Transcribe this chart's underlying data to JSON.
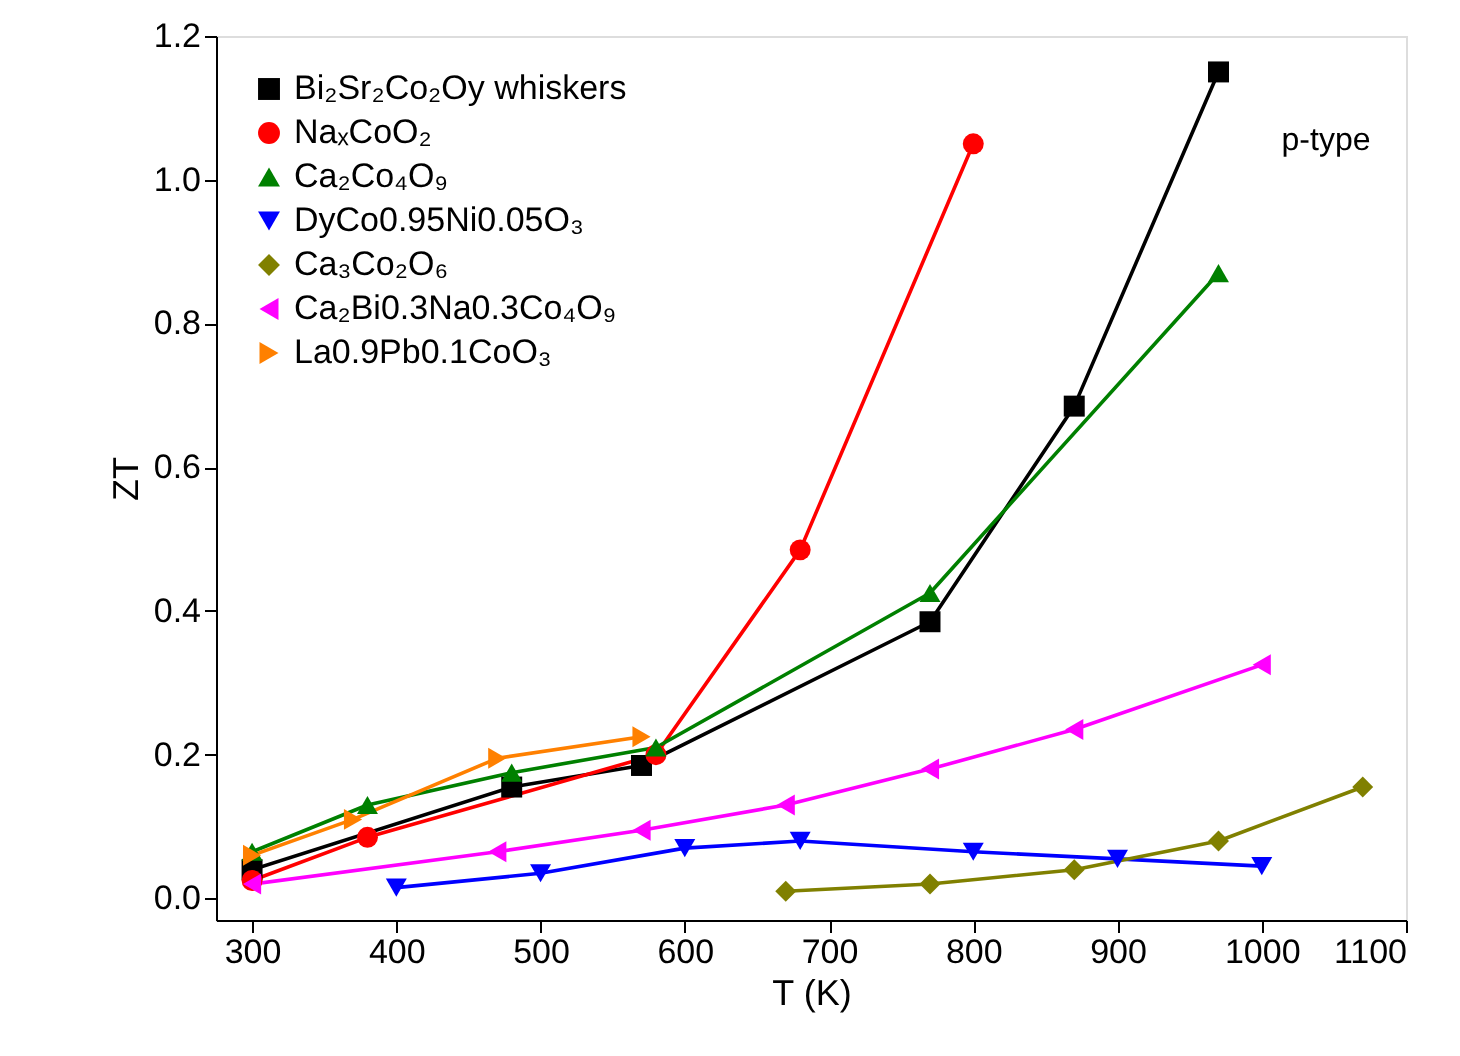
{
  "chart_data": {
    "type": "line",
    "xlabel": "T (K)",
    "ylabel": "ZT",
    "xlim": [
      275,
      1100
    ],
    "ylim": [
      -0.03,
      1.2
    ],
    "xticks": [
      300,
      400,
      500,
      600,
      700,
      800,
      900,
      {
        "value": 1000,
        "label": "1000"
      },
      {
        "value": 1100,
        "label": "1100"
      }
    ],
    "yticks": [
      {
        "value": 0,
        "label": "0.0"
      },
      0.2,
      0.4,
      0.6,
      0.8,
      {
        "value": 1,
        "label": "1.0"
      },
      1.2
    ],
    "legend": "top left",
    "grid": false,
    "annotations": [
      "p-type"
    ],
    "series": [
      {
        "name": "Bi₂Sr₂Co₂Oy whiskers",
        "color": "#000000",
        "marker": "square",
        "x": [
          300,
          480,
          570,
          770,
          870,
          970
        ],
        "values": [
          0.04,
          0.155,
          0.185,
          0.385,
          0.685,
          1.15
        ]
      },
      {
        "name": "NaₓCoO₂",
        "color": "#ff0000",
        "marker": "circle",
        "x": [
          300,
          380,
          580,
          680,
          800
        ],
        "values": [
          0.025,
          0.085,
          0.2,
          0.485,
          1.05
        ]
      },
      {
        "name": "Ca₂Co₄O₉",
        "color": "#008000",
        "marker": "triangle",
        "x": [
          300,
          380,
          480,
          580,
          770,
          970
        ],
        "values": [
          0.065,
          0.13,
          0.175,
          0.21,
          0.425,
          0.87
        ]
      },
      {
        "name": "DyCo0.95Ni0.05O₃",
        "color": "#0000ff",
        "marker": "triangle-down",
        "x": [
          400,
          500,
          600,
          680,
          800,
          900,
          1000
        ],
        "values": [
          0.015,
          0.035,
          0.07,
          0.08,
          0.065,
          0.055,
          0.045
        ]
      },
      {
        "name": "Ca₃Co₂O₆",
        "color": "#808000",
        "marker": "diamond",
        "x": [
          670,
          770,
          870,
          970,
          1070
        ],
        "values": [
          0.01,
          0.02,
          0.04,
          0.08,
          0.155
        ]
      },
      {
        "name": "Ca₂Bi0.3Na0.3Co₄O₉",
        "color": "#ff00ff",
        "marker": "triangle-left",
        "x": [
          300,
          470,
          570,
          670,
          770,
          870,
          1000
        ],
        "values": [
          0.02,
          0.065,
          0.095,
          0.13,
          0.18,
          0.235,
          0.325
        ]
      },
      {
        "name": "La0.9Pb0.1CoO₃",
        "color": "#ff8000",
        "marker": "triangle-right",
        "x": [
          300,
          370,
          470,
          570
        ],
        "values": [
          0.06,
          0.11,
          0.195,
          0.225
        ]
      }
    ]
  }
}
